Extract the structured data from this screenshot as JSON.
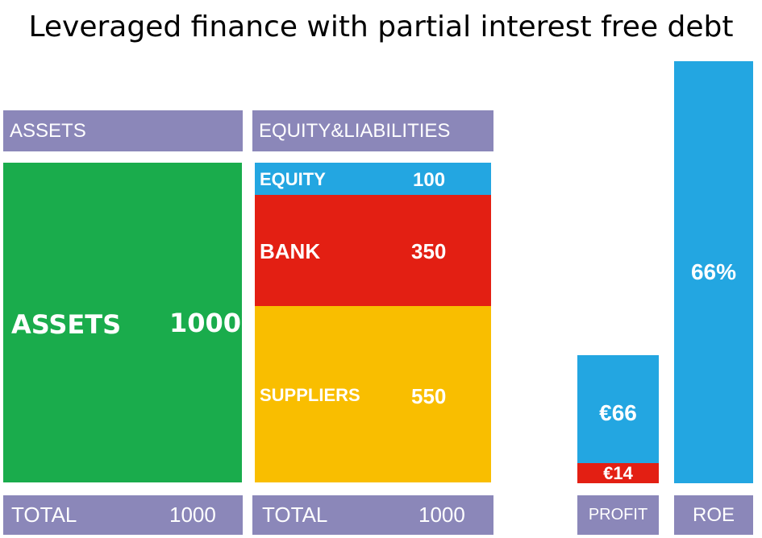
{
  "title": "Leveraged finance with partial interest free debt",
  "colors": {
    "header": "#8b87b9",
    "assets": "#1aac4c",
    "equity": "#23a6e1",
    "bank": "#e31f13",
    "suppliers": "#f9be00",
    "profit": "#23a6e1",
    "interest": "#e31f13",
    "roe": "#23a6e1"
  },
  "assets_column": {
    "header": "ASSETS",
    "block": {
      "label": "ASSETS",
      "value": "1000"
    },
    "total": {
      "label": "TOTAL",
      "value": "1000"
    }
  },
  "liabilities_column": {
    "header": "EQUITY&LIABILITIES",
    "blocks": [
      {
        "label": "EQUITY",
        "value": "100"
      },
      {
        "label": "BANK",
        "value": "350"
      },
      {
        "label": "SUPPLIERS",
        "value": "550"
      }
    ],
    "total": {
      "label": "TOTAL",
      "value": "1000"
    }
  },
  "profit_bar": {
    "label": "PROFIT",
    "profit_value": "€66",
    "interest_value": "€14"
  },
  "roe_bar": {
    "label": "ROE",
    "value": "66%"
  }
}
